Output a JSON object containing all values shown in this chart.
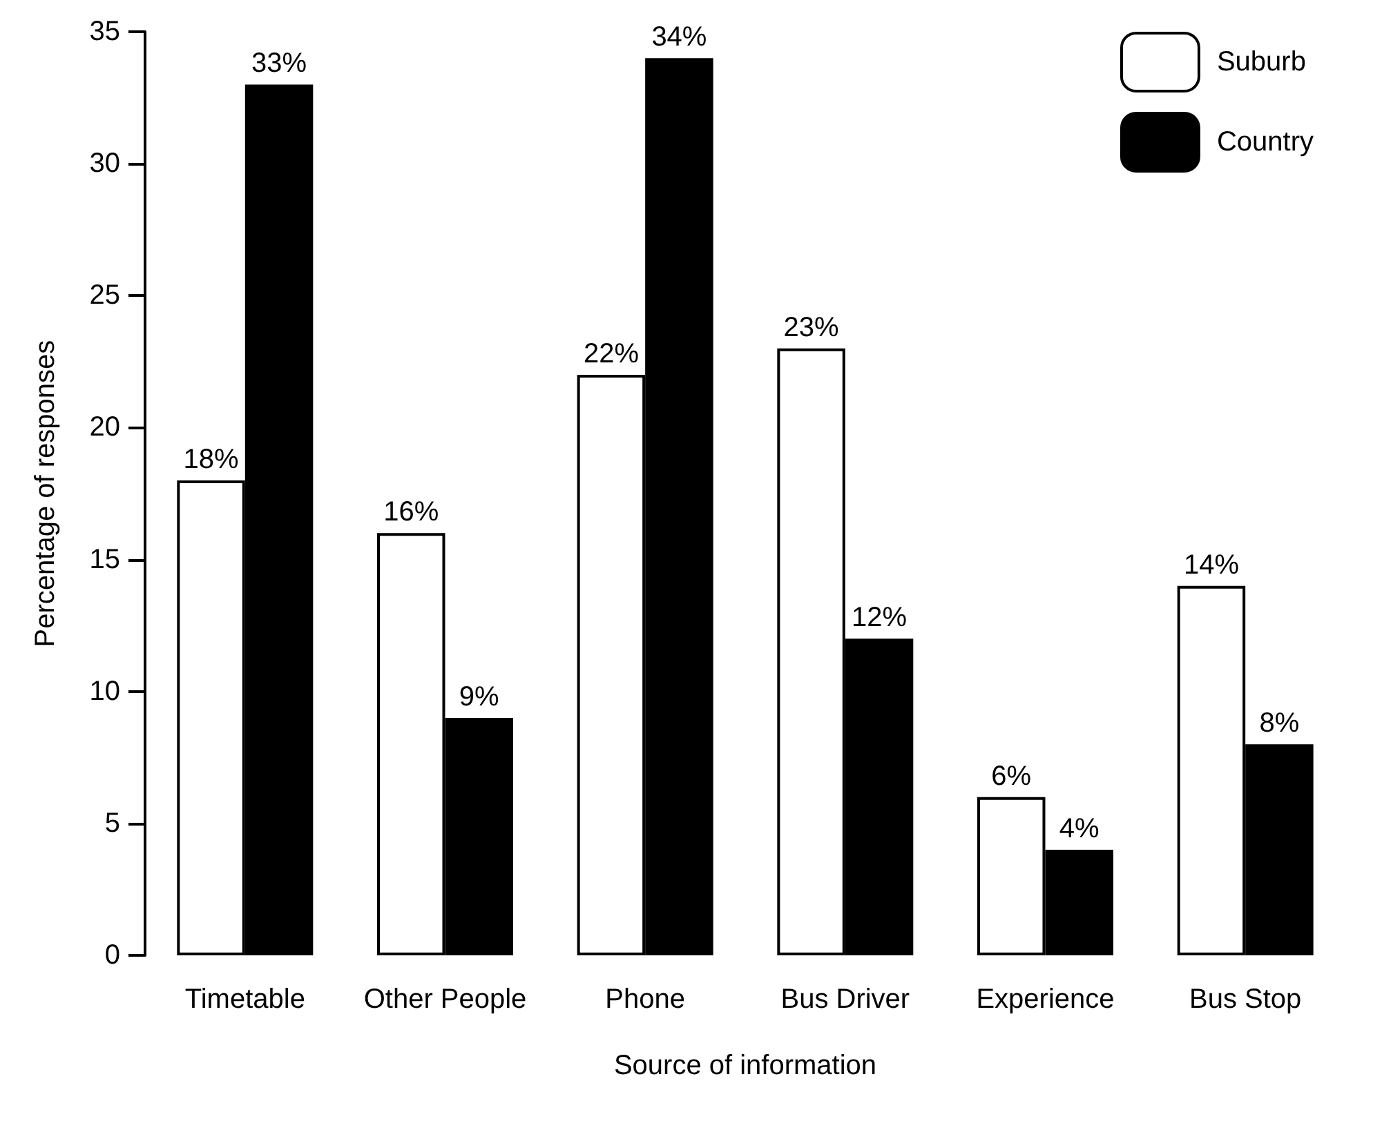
{
  "chart_data": {
    "type": "bar",
    "xlabel": "Source of information",
    "ylabel": "Percentage of responses",
    "categories": [
      "Timetable",
      "Other People",
      "Phone",
      "Bus Driver",
      "Experience",
      "Bus Stop"
    ],
    "series": [
      {
        "name": "Suburb",
        "color": "#ffffff",
        "values": [
          18,
          16,
          22,
          23,
          6,
          14
        ],
        "value_labels": [
          "18%",
          "16%",
          "22%",
          "23%",
          "6%",
          "14%"
        ]
      },
      {
        "name": "Country",
        "color": "#000000",
        "values": [
          33,
          9,
          34,
          12,
          4,
          8
        ],
        "value_labels": [
          "33%",
          "9%",
          "34%",
          "12%",
          "4%",
          "8%"
        ]
      }
    ],
    "ylim": [
      0,
      35
    ],
    "yticks": [
      0,
      5,
      10,
      15,
      20,
      25,
      30,
      35
    ],
    "grid": false,
    "legend": "top right"
  }
}
